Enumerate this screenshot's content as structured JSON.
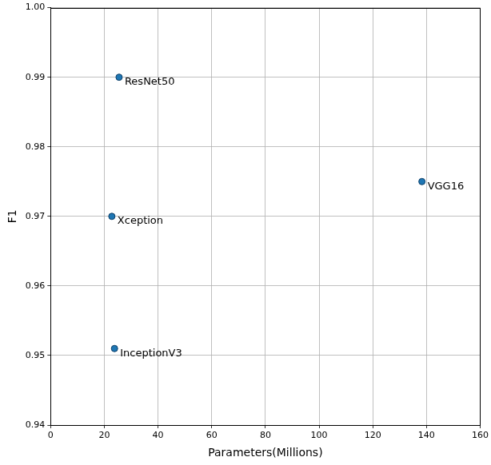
{
  "chart_data": {
    "type": "scatter",
    "x_label": "Parameters(Millions)",
    "y_label": "F1",
    "x": [
      25.5,
      22.8,
      23.8,
      138.3
    ],
    "values": [
      0.99,
      0.97,
      0.951,
      0.975
    ],
    "annotations": [
      "ResNet50",
      "Xception",
      "InceptionV3",
      "VGG16"
    ],
    "color": "#1f77b4",
    "marker": "circle",
    "xlim": [
      0,
      160
    ],
    "xticks": [
      0,
      20,
      40,
      60,
      80,
      100,
      120,
      140,
      160
    ],
    "ylim": [
      0.94,
      1.0
    ],
    "yticks": [
      0.94,
      0.95,
      0.96,
      0.97,
      0.98,
      0.99,
      {
        "value": 1.0,
        "label": "1.00"
      }
    ],
    "grid": true
  }
}
